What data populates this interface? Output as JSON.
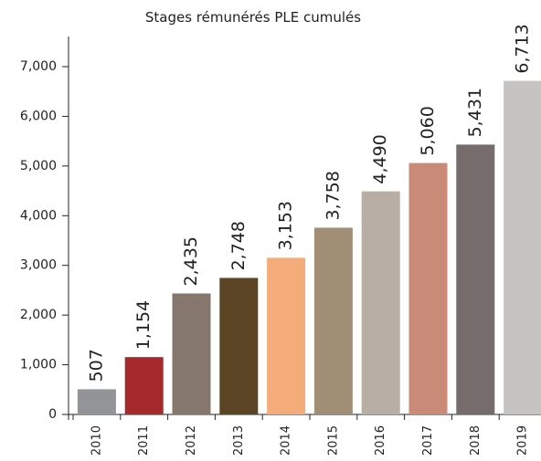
{
  "chart_data": {
    "type": "bar",
    "title": "Stages rémunérés PLE cumulés",
    "categories": [
      "2010",
      "2011",
      "2012",
      "2013",
      "2014",
      "2015",
      "2016",
      "2017",
      "2018",
      "2019"
    ],
    "values": [
      507,
      1154,
      2435,
      2748,
      3153,
      3758,
      4490,
      5060,
      5431,
      6713
    ],
    "value_labels": [
      "507",
      "1,154",
      "2,435",
      "2,748",
      "3,153",
      "3,758",
      "4,490",
      "5,060",
      "5,431",
      "6,713"
    ],
    "colors": [
      "#929497",
      "#a3292b",
      "#86776d",
      "#5c4525",
      "#f4ad7a",
      "#a18f75",
      "#b8aea6",
      "#c98a78",
      "#766c6b",
      "#c6c3c3"
    ],
    "ylim": [
      0,
      7000
    ],
    "yticks": [
      0,
      {
        "value": 1000,
        "label": "1,000"
      },
      {
        "value": 2000,
        "label": "2,000"
      },
      {
        "value": 3000,
        "label": "3,000"
      },
      {
        "value": 4000,
        "label": "4,000"
      },
      {
        "value": 5000,
        "label": "5,000"
      },
      {
        "value": 6000,
        "label": "6,000"
      },
      {
        "value": 7000,
        "label": "7,000"
      }
    ]
  }
}
